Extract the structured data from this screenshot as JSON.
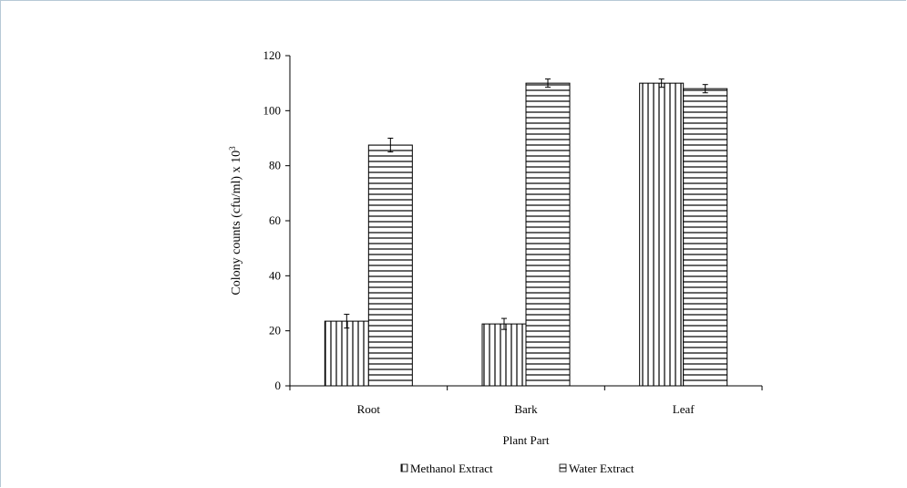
{
  "chart_data": {
    "type": "bar",
    "categories": [
      "Root",
      "Bark",
      "Leaf"
    ],
    "series": [
      {
        "name": "Methanol Extract",
        "values": [
          23.5,
          22.5,
          110
        ],
        "errors": [
          2.5,
          2.0,
          1.5
        ],
        "pattern": "vertical-stripes"
      },
      {
        "name": "Water Extract",
        "values": [
          87.5,
          110,
          108
        ],
        "errors": [
          2.5,
          1.5,
          1.5
        ],
        "pattern": "horizontal-stripes"
      }
    ],
    "title": "",
    "xlabel": "Plant Part",
    "ylabel": "Colony counts (cfu/ml) x 10",
    "ylabel_superscript": "3",
    "ylim": [
      0,
      120
    ],
    "yticks": [
      0,
      20,
      40,
      60,
      80,
      100,
      120
    ],
    "grid": false,
    "legend_position": "bottom"
  },
  "colors": {
    "frame": "#b7c9d6",
    "ink": "#000000",
    "fill": "#ffffff"
  }
}
